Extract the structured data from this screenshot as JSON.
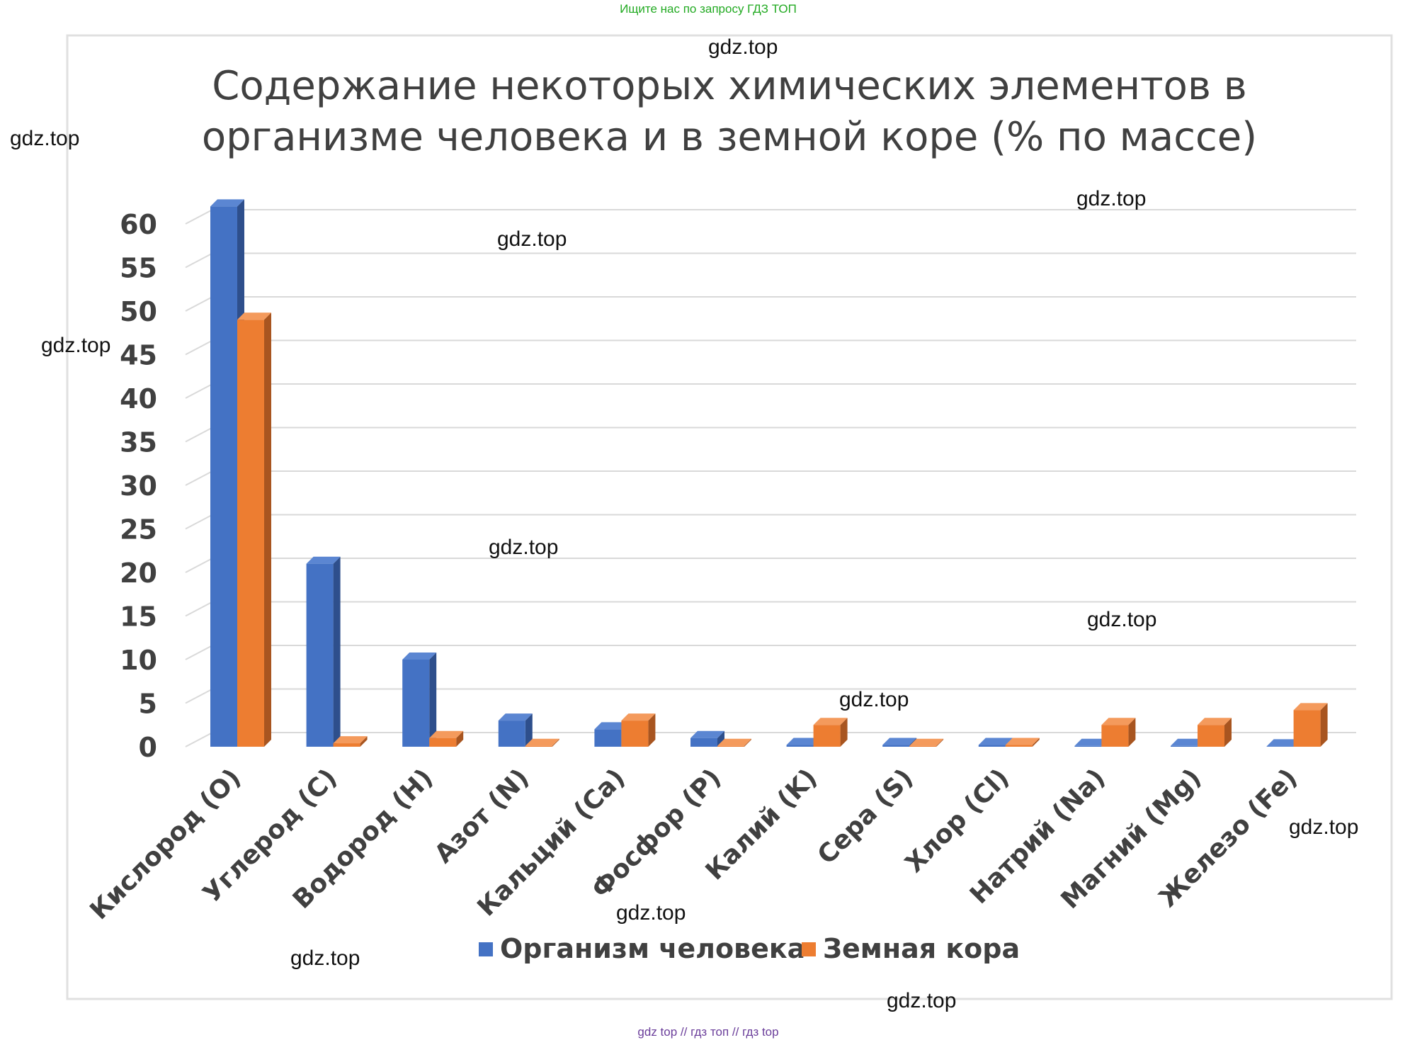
{
  "header": {
    "promo": "Ищите нас по запросу ГДЗ ТОП"
  },
  "footer": {
    "links": "gdz top  //  гдз топ  //  гдз top"
  },
  "watermark": "gdz.top",
  "colors": {
    "series1": "#4472C4",
    "series2": "#ED7D31",
    "promo": "#22aa22",
    "footer": "#6a3d9a",
    "grid": "#d9d9d9"
  },
  "chart_data": {
    "type": "bar",
    "title_lines": [
      "Содержание некоторых химических элементов в",
      "организме человека и в земной коре (% по массе)"
    ],
    "categories": [
      "Кислород (O)",
      "Углерод (C)",
      "Водород (H)",
      "Азот (N)",
      "Кальций (Ca)",
      "Фосфор (P)",
      "Калий (K)",
      "Сера (S)",
      "Хлор (Cl)",
      "Натрий (Na)",
      "Магний (Mg)",
      "Железо (Fe)"
    ],
    "series": [
      {
        "name": "Организм человека",
        "values": [
          62,
          21,
          10,
          3,
          2,
          1,
          0.2,
          0.2,
          0.2,
          0.1,
          0.1,
          0.01
        ]
      },
      {
        "name": "Земная кора",
        "values": [
          49,
          0.4,
          1,
          0.1,
          3,
          0.1,
          2.5,
          0.1,
          0.2,
          2.5,
          2.5,
          4.2
        ]
      }
    ],
    "yticks": [
      0,
      5,
      10,
      15,
      20,
      25,
      30,
      35,
      40,
      45,
      50,
      55,
      60
    ],
    "ylim": [
      0,
      60
    ],
    "grid": true,
    "legend_position": "bottom"
  }
}
